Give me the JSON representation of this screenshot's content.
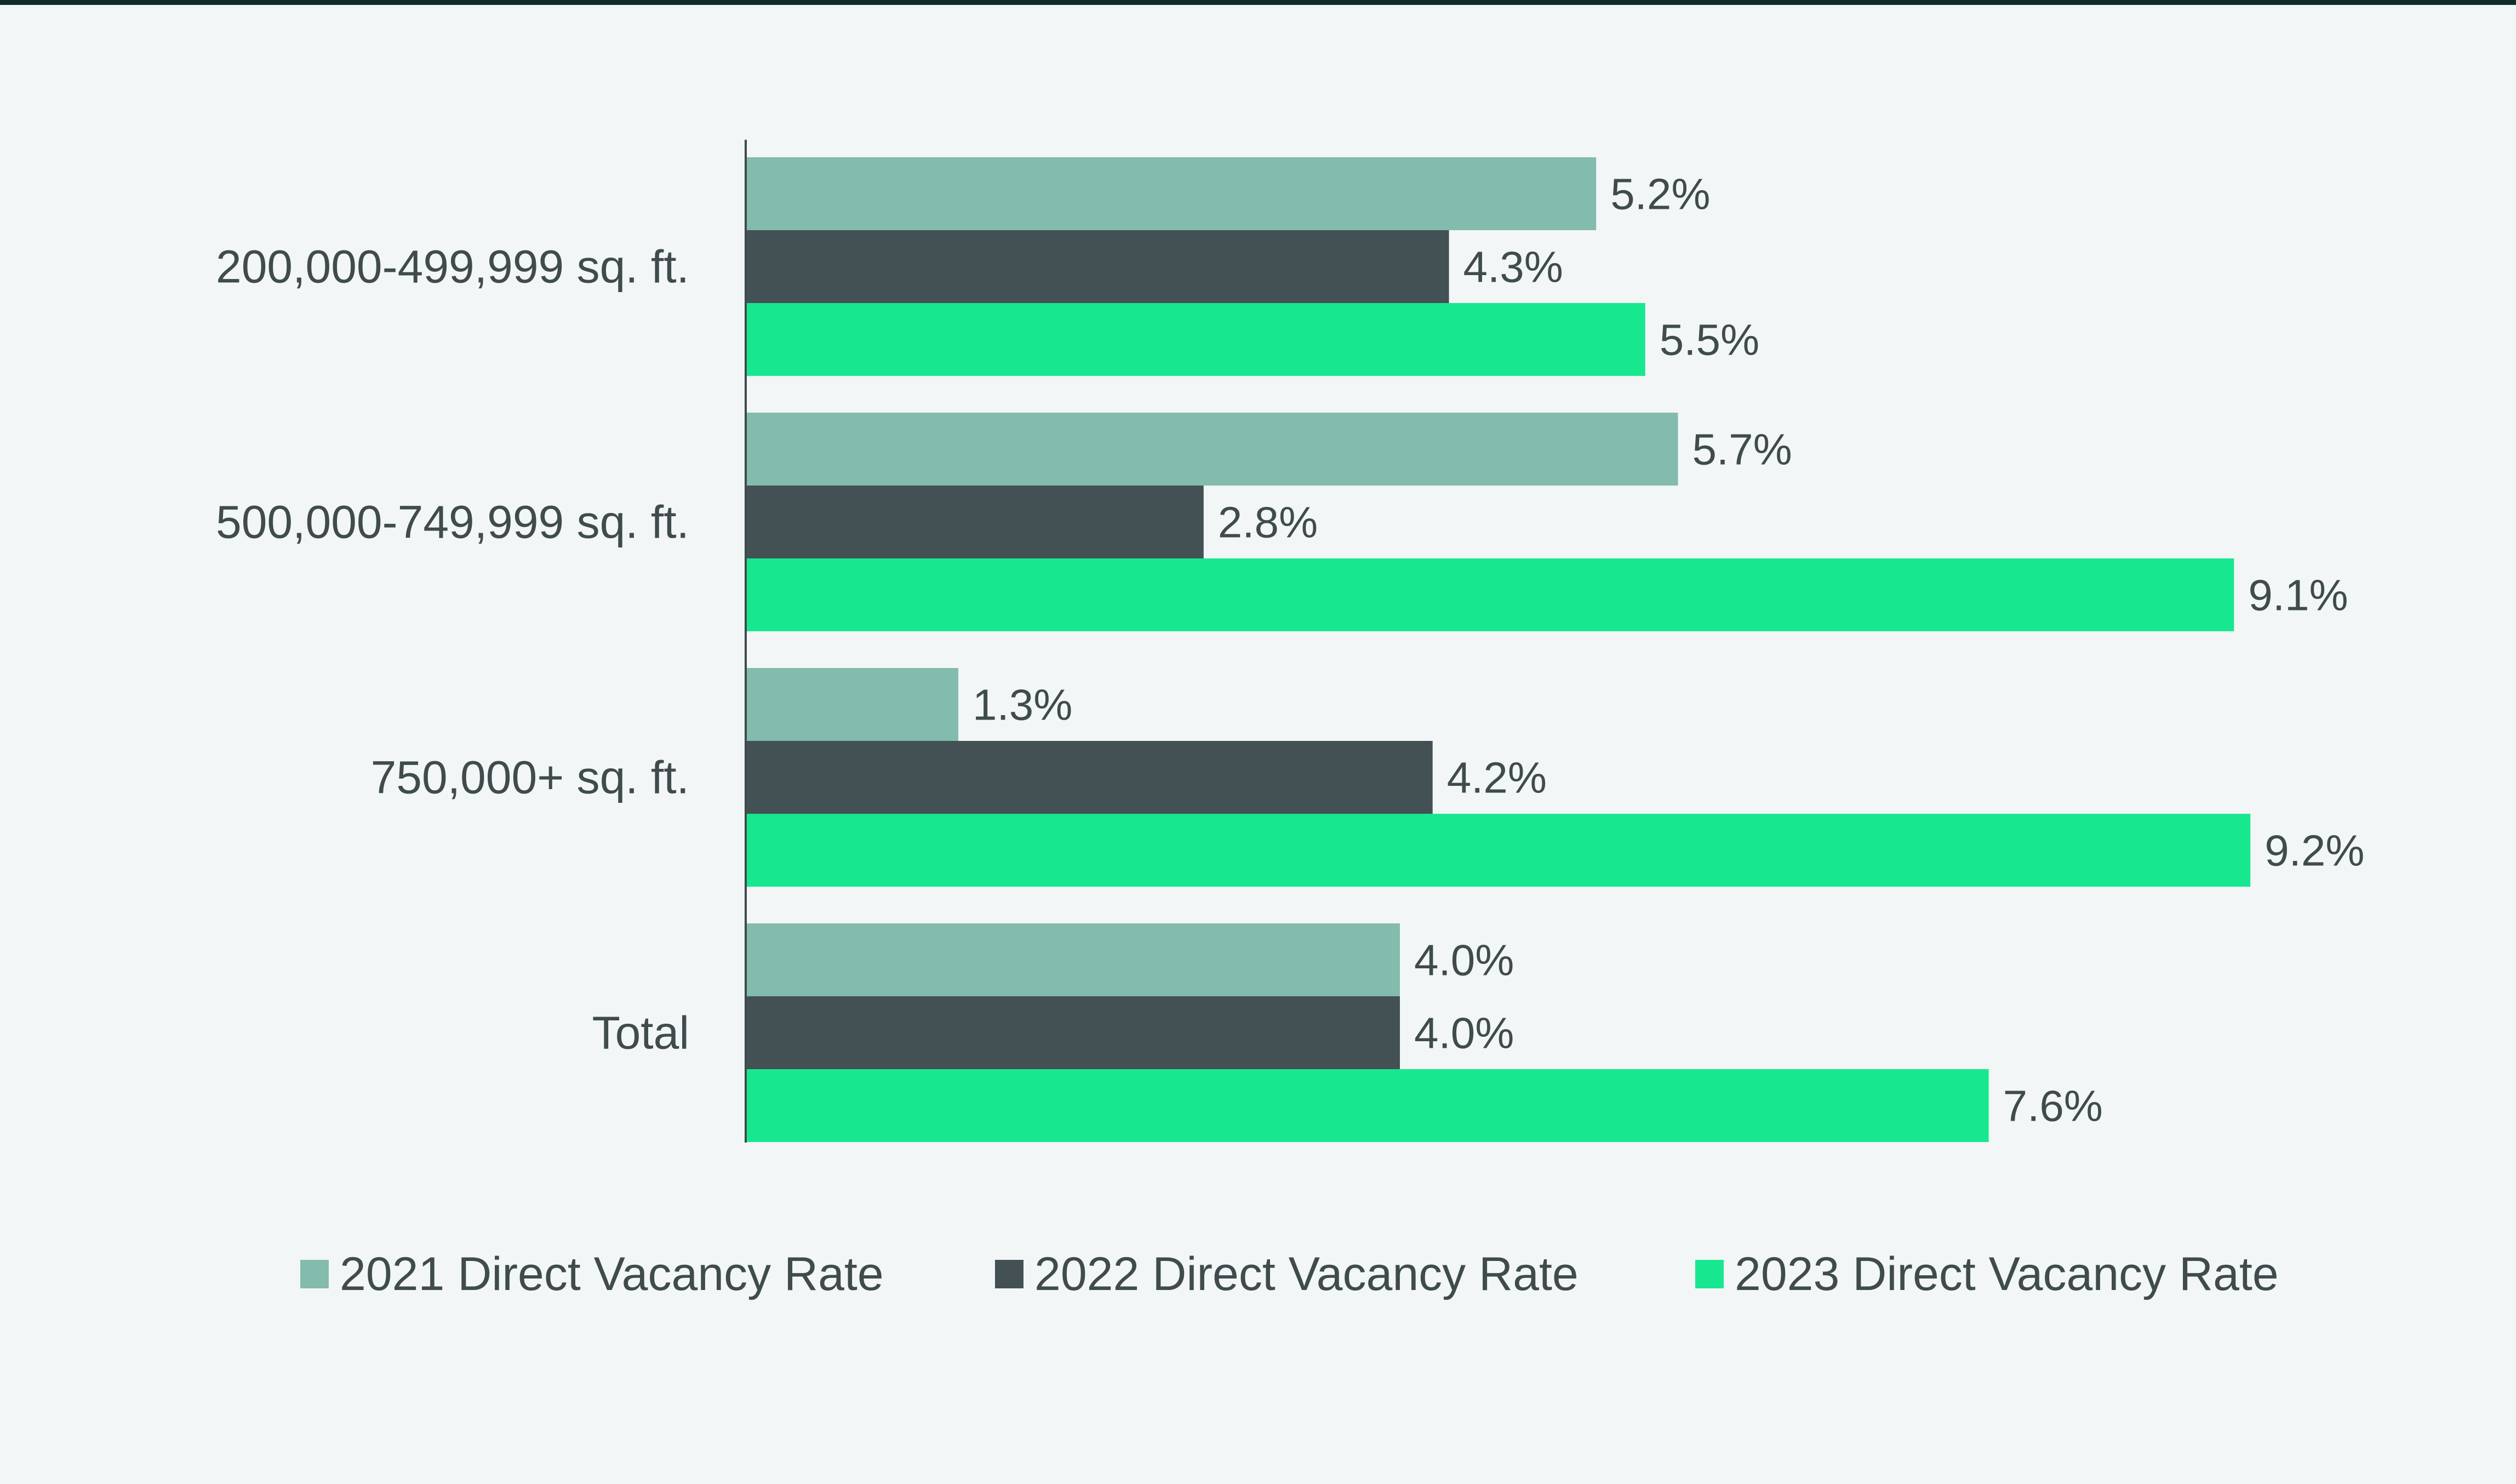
{
  "chart_data": {
    "type": "bar",
    "orientation": "horizontal",
    "categories": [
      "200,000-499,999 sq. ft.",
      "500,000-749,999 sq. ft.",
      "750,000+ sq. ft.",
      "Total"
    ],
    "series": [
      {
        "name": "2021 Direct Vacancy Rate",
        "color": "#83bbad",
        "values": [
          5.2,
          5.7,
          1.3,
          4.0
        ],
        "labels": [
          "5.2%",
          "5.7%",
          "1.3%",
          "4.0%"
        ]
      },
      {
        "name": "2022 Direct Vacancy Rate",
        "color": "#435155",
        "values": [
          4.3,
          2.8,
          4.2,
          4.0
        ],
        "labels": [
          "4.3%",
          "2.8%",
          "4.2%",
          "4.0%"
        ]
      },
      {
        "name": "2023 Direct Vacancy Rate",
        "color": "#17e88f",
        "values": [
          5.5,
          9.1,
          9.2,
          7.6
        ],
        "labels": [
          "5.5%",
          "9.1%",
          "9.2%",
          "7.6%"
        ]
      }
    ],
    "value_unit": "%",
    "xlim": [
      0,
      9.2
    ],
    "grid": false,
    "legend_position": "bottom",
    "axis_color": "#3f4b4c",
    "text_color": "#3f4b4c",
    "background": "#f2f6f6"
  }
}
